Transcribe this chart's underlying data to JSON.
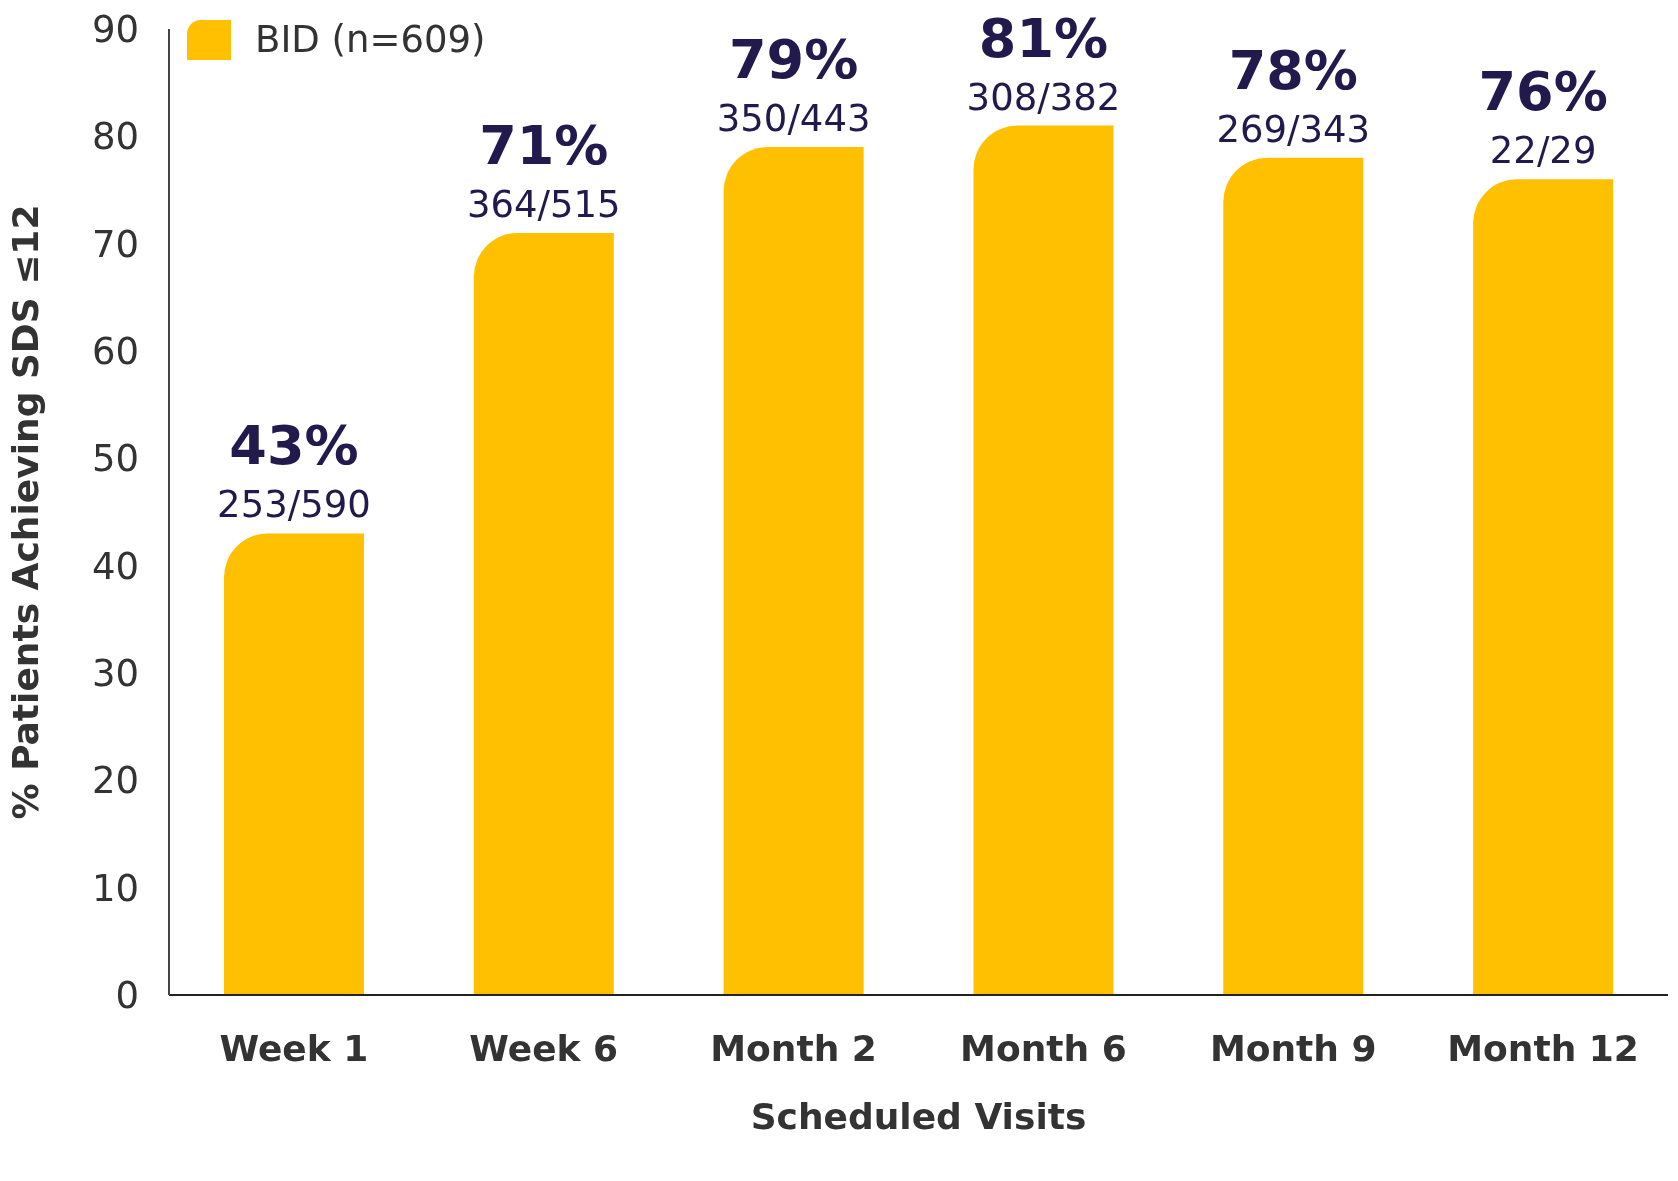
{
  "chart_data": {
    "type": "bar",
    "xlabel": "Scheduled Visits",
    "ylabel": "% Patients Achieving SDS ≤12",
    "categories": [
      "Week 1",
      "Week 6",
      "Month 2",
      "Month 6",
      "Month 9",
      "Month 12"
    ],
    "series": [
      {
        "name": "BID (n=609)",
        "color": "#fec000",
        "values": [
          43,
          71,
          79,
          81,
          78,
          76
        ],
        "value_labels": [
          "43%\n253/590",
          "71%\n364/515",
          "79%\n350/443",
          "81%\n308/382",
          "78%\n269/343",
          "76%\n22/29"
        ]
      }
    ],
    "ylim": [
      0,
      90
    ],
    "yticks": [
      0,
      10,
      20,
      30,
      40,
      50,
      60,
      70,
      80,
      90
    ],
    "grid": false,
    "legend": "top left"
  }
}
